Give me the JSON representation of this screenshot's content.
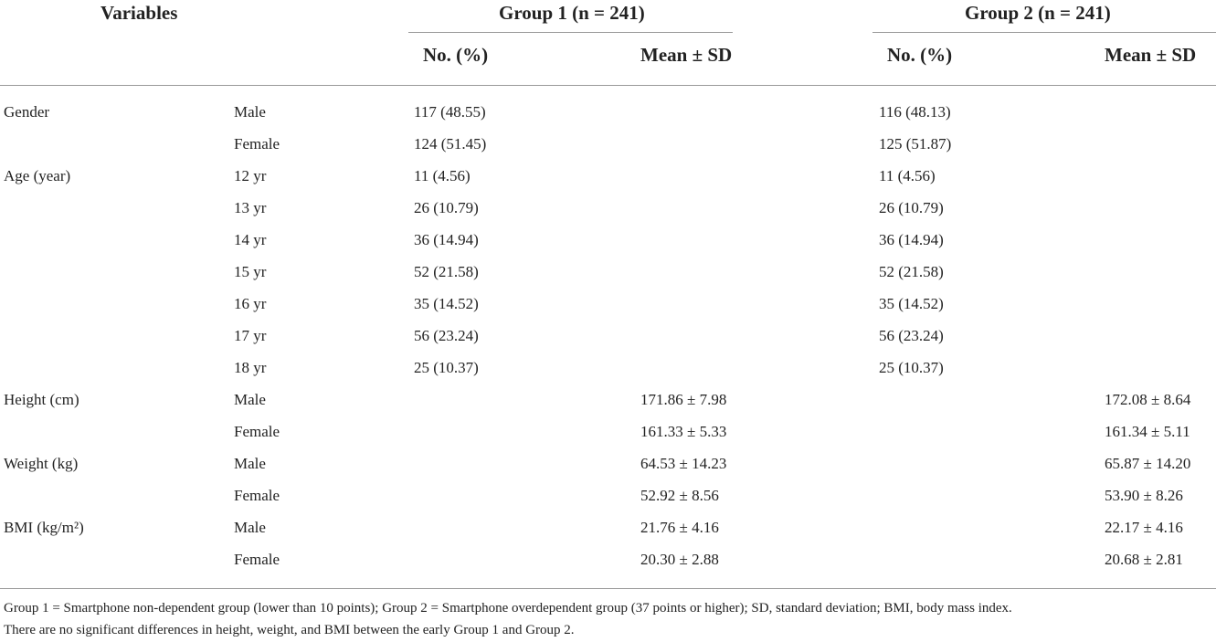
{
  "header": {
    "variables": "Variables",
    "groups": [
      "Group 1 (n = 241)",
      "Group 2 (n = 241)"
    ],
    "subheaders": [
      "No. (%)",
      "Mean ± SD",
      "No. (%)",
      "Mean ± SD"
    ]
  },
  "rows": [
    {
      "variable": "Gender",
      "level": "Male",
      "g1_no": "117 (48.55)",
      "g2_no": "116 (48.13)"
    },
    {
      "level": "Female",
      "g1_no": "124 (51.45)",
      "g2_no": "125 (51.87)"
    },
    {
      "variable": "Age (year)",
      "level": "12 yr",
      "g1_no": "11 (4.56)",
      "g2_no": "11 (4.56)"
    },
    {
      "level": "13 yr",
      "g1_no": "26 (10.79)",
      "g2_no": "26 (10.79)"
    },
    {
      "level": "14 yr",
      "g1_no": "36 (14.94)",
      "g2_no": "36 (14.94)"
    },
    {
      "level": "15 yr",
      "g1_no": "52 (21.58)",
      "g2_no": "52 (21.58)"
    },
    {
      "level": "16 yr",
      "g1_no": "35 (14.52)",
      "g2_no": "35 (14.52)"
    },
    {
      "level": "17 yr",
      "g1_no": "56 (23.24)",
      "g2_no": "56 (23.24)"
    },
    {
      "level": "18 yr",
      "g1_no": "25 (10.37)",
      "g2_no": "25 (10.37)"
    },
    {
      "variable": "Height (cm)",
      "level": "Male",
      "g1_mean": "171.86 ± 7.98",
      "g2_mean": "172.08 ± 8.64"
    },
    {
      "level": "Female",
      "g1_mean": "161.33 ± 5.33",
      "g2_mean": "161.34 ± 5.11"
    },
    {
      "variable": "Weight (kg)",
      "level": "Male",
      "g1_mean": "64.53 ± 14.23",
      "g2_mean": "65.87 ± 14.20"
    },
    {
      "level": "Female",
      "g1_mean": "52.92 ± 8.56",
      "g2_mean": "53.90 ± 8.26"
    },
    {
      "variable": "BMI (kg/m²)",
      "level": "Male",
      "g1_mean": "21.76 ± 4.16",
      "g2_mean": "22.17 ± 4.16"
    },
    {
      "level": "Female",
      "g1_mean": "20.30 ± 2.88",
      "g2_mean": "20.68 ± 2.81"
    }
  ],
  "footnote": [
    "Group 1 = Smartphone non-dependent group (lower than 10 points); Group 2 = Smartphone overdependent group (37 points or higher); SD, standard deviation; BMI, body mass index.",
    "There are no significant differences in height, weight, and BMI between the early Group 1 and Group 2."
  ]
}
